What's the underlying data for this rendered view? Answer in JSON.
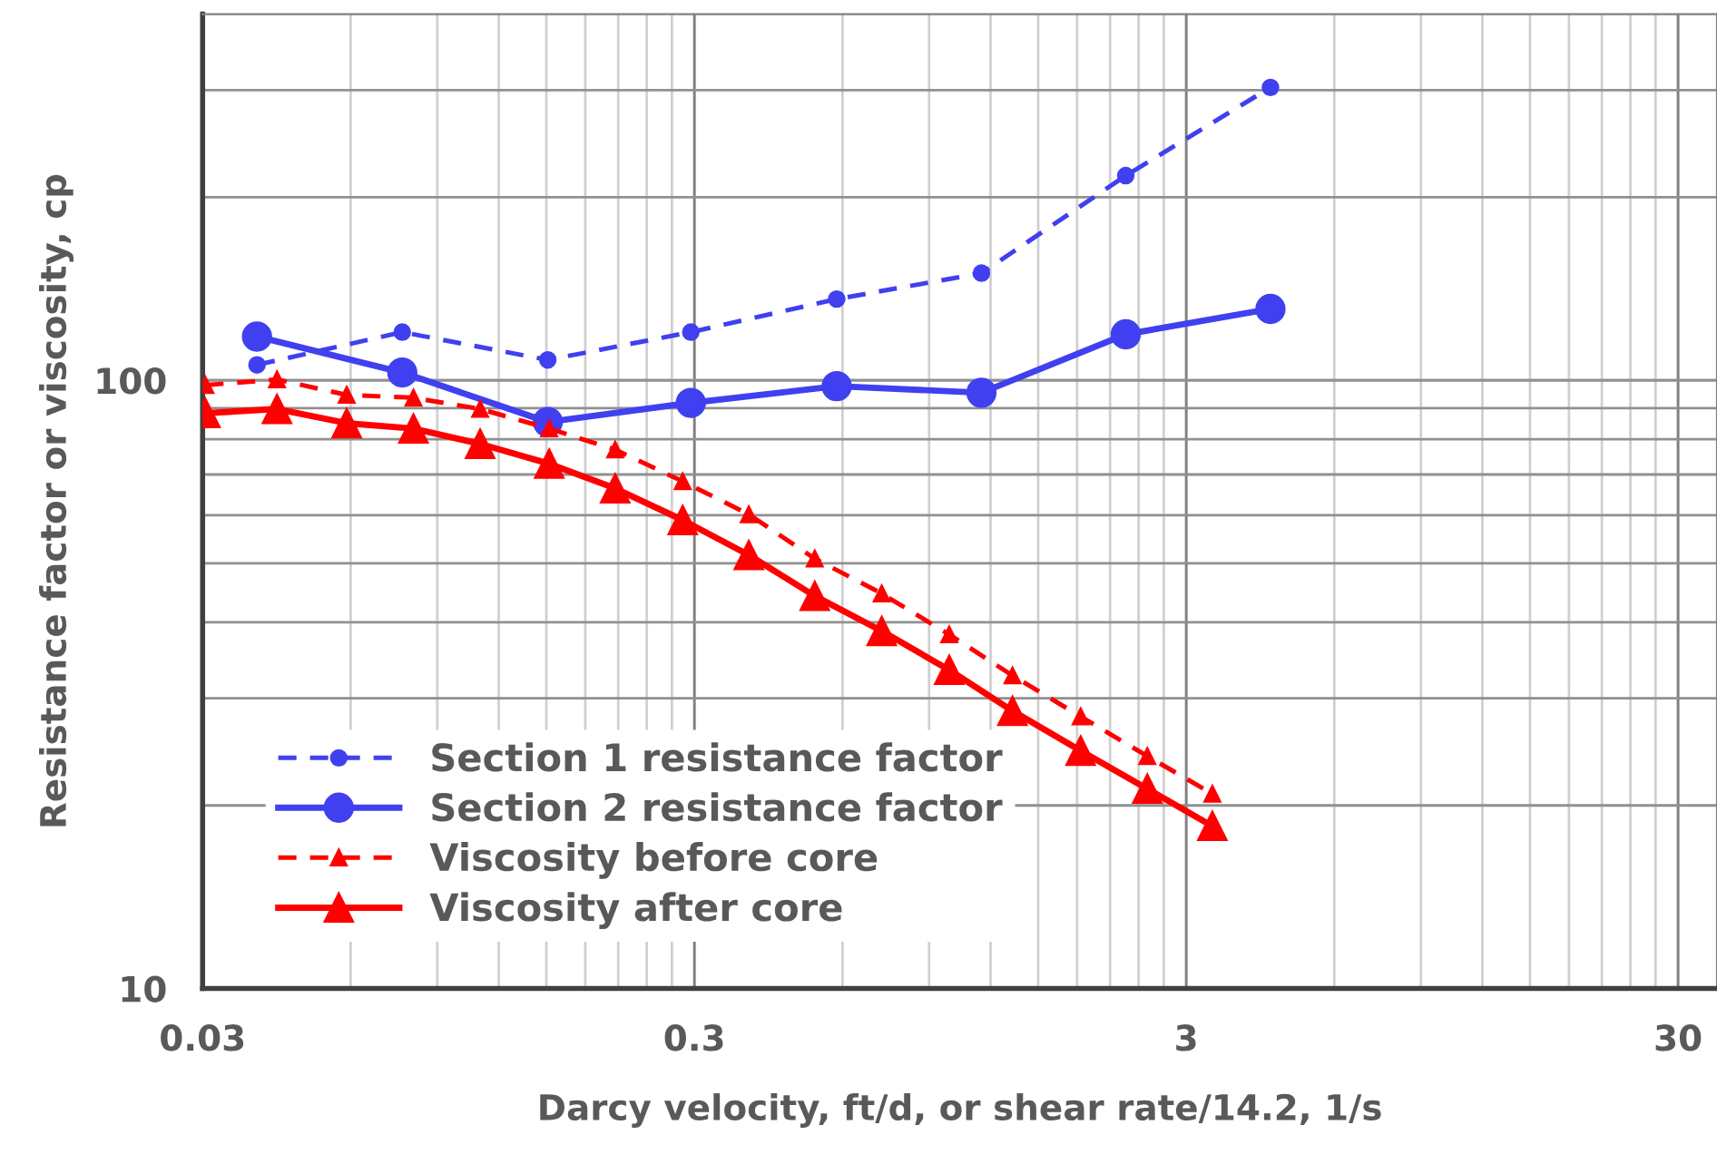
{
  "chart_data": {
    "type": "line",
    "xlabel": "Darcy velocity, ft/d, or shear rate/14.2, 1/s",
    "ylabel": "Resistance factor or viscosity, cp",
    "log": "xy",
    "grid": true,
    "legend": "bottom left",
    "xlim": [
      0.03,
      36
    ],
    "xticks": [
      0.03,
      0.3,
      3,
      30
    ],
    "ylim": [
      10,
      400
    ],
    "yticks": [
      10,
      100
    ],
    "series": [
      {
        "name": "Section 1 resistance factor",
        "color": "#4040f0",
        "line_style": "dashed",
        "marker": "circle",
        "x": [
          0.0387,
          0.0764,
          0.151,
          0.295,
          0.584,
          1.15,
          2.26,
          4.45
        ],
        "values": [
          106,
          120,
          108,
          120,
          136,
          150,
          217,
          303
        ]
      },
      {
        "name": "Section 2 resistance factor",
        "color": "#4040f0",
        "line_style": "solid",
        "marker": "circle",
        "x": [
          0.0387,
          0.0764,
          0.151,
          0.295,
          0.584,
          1.15,
          2.26,
          4.45
        ],
        "values": [
          118,
          103,
          85.4,
          91.8,
          97.8,
          95.4,
          119,
          131
        ]
      },
      {
        "name": "Viscosity before core",
        "color": "#ff0000",
        "line_style": "dashed",
        "marker": "triangle",
        "x": [
          0.0304,
          0.0425,
          0.0589,
          0.0805,
          0.11,
          0.152,
          0.207,
          0.284,
          0.387,
          0.527,
          0.721,
          0.989,
          1.33,
          1.83,
          2.5,
          3.39
        ],
        "values": [
          98.2,
          100.3,
          94.6,
          93.6,
          89.7,
          83.3,
          76.9,
          68.2,
          60.2,
          50.9,
          44.6,
          38.2,
          32.7,
          28.0,
          24.1,
          20.9
        ]
      },
      {
        "name": "Viscosity after core",
        "color": "#ff0000",
        "line_style": "solid",
        "marker": "triangle",
        "x": [
          0.0304,
          0.0425,
          0.0589,
          0.0805,
          0.11,
          0.152,
          0.207,
          0.284,
          0.387,
          0.527,
          0.721,
          0.989,
          1.33,
          1.83,
          2.5,
          3.39
        ],
        "values": [
          88.3,
          89.7,
          85.0,
          83.3,
          78.6,
          72.9,
          66.4,
          58.9,
          51.6,
          44.2,
          38.7,
          33.4,
          28.6,
          24.6,
          21.3,
          18.5
        ]
      }
    ]
  }
}
